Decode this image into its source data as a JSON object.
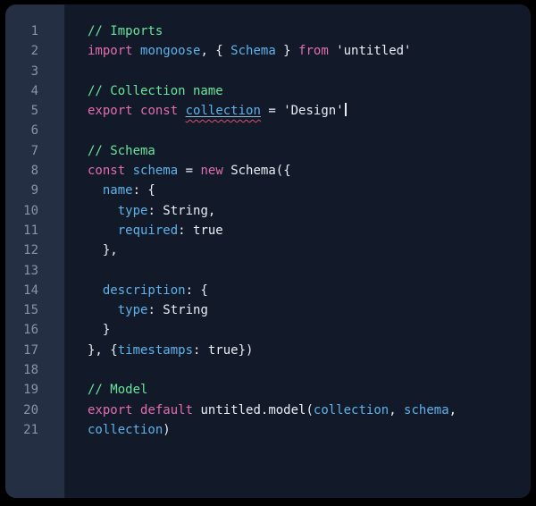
{
  "colors": {
    "frame": "#000000",
    "editor_bg": "#121a2a",
    "gutter_bg": "#242f43",
    "line_number": "#8a94a6",
    "comment": "#69e59b",
    "keyword": "#e26daf",
    "identifier": "#5eb2e9",
    "plain": "#e9edf4",
    "error_squiggle": "#dd4f68",
    "identifier_underline": "#93bcd9",
    "cursor": "#e9edf4"
  },
  "editor": {
    "language": "javascript",
    "lines": [
      {
        "num": "1",
        "tokens": [
          {
            "t": "// Imports",
            "c": "comment"
          }
        ]
      },
      {
        "num": "2",
        "tokens": [
          {
            "t": "import",
            "c": "keyword"
          },
          {
            "t": " ",
            "c": "plain"
          },
          {
            "t": "mongoose",
            "c": "ident"
          },
          {
            "t": ", { ",
            "c": "plain"
          },
          {
            "t": "Schema",
            "c": "ident"
          },
          {
            "t": " } ",
            "c": "plain"
          },
          {
            "t": "from",
            "c": "keyword"
          },
          {
            "t": " 'untitled'",
            "c": "plain"
          }
        ]
      },
      {
        "num": "3",
        "tokens": []
      },
      {
        "num": "4",
        "tokens": [
          {
            "t": "// Collection name",
            "c": "comment"
          }
        ]
      },
      {
        "num": "5",
        "tokens": [
          {
            "t": "export",
            "c": "keyword"
          },
          {
            "t": " ",
            "c": "plain"
          },
          {
            "t": "const",
            "c": "keyword"
          },
          {
            "t": " ",
            "c": "plain"
          },
          {
            "t": "collection",
            "c": "ident",
            "error": true
          },
          {
            "t": " = 'Design'",
            "c": "plain"
          },
          {
            "t": "",
            "c": "cursor"
          }
        ]
      },
      {
        "num": "6",
        "tokens": []
      },
      {
        "num": "7",
        "tokens": [
          {
            "t": "// Schema",
            "c": "comment"
          }
        ]
      },
      {
        "num": "8",
        "tokens": [
          {
            "t": "const",
            "c": "keyword"
          },
          {
            "t": " ",
            "c": "plain"
          },
          {
            "t": "schema",
            "c": "ident"
          },
          {
            "t": " = ",
            "c": "plain"
          },
          {
            "t": "new",
            "c": "keyword"
          },
          {
            "t": " Schema({",
            "c": "plain"
          }
        ]
      },
      {
        "num": "9",
        "tokens": [
          {
            "t": "  ",
            "c": "plain"
          },
          {
            "t": "name",
            "c": "ident"
          },
          {
            "t": ": {",
            "c": "plain"
          }
        ]
      },
      {
        "num": "10",
        "tokens": [
          {
            "t": "    ",
            "c": "plain"
          },
          {
            "t": "type",
            "c": "ident"
          },
          {
            "t": ": String,",
            "c": "plain"
          }
        ]
      },
      {
        "num": "11",
        "tokens": [
          {
            "t": "    ",
            "c": "plain"
          },
          {
            "t": "required",
            "c": "ident"
          },
          {
            "t": ": true",
            "c": "plain"
          }
        ]
      },
      {
        "num": "12",
        "tokens": [
          {
            "t": "  },",
            "c": "plain"
          }
        ]
      },
      {
        "num": "13",
        "tokens": []
      },
      {
        "num": "14",
        "tokens": [
          {
            "t": "  ",
            "c": "plain"
          },
          {
            "t": "description",
            "c": "ident"
          },
          {
            "t": ": {",
            "c": "plain"
          }
        ]
      },
      {
        "num": "15",
        "tokens": [
          {
            "t": "    ",
            "c": "plain"
          },
          {
            "t": "type",
            "c": "ident"
          },
          {
            "t": ": String",
            "c": "plain"
          }
        ]
      },
      {
        "num": "16",
        "tokens": [
          {
            "t": "  }",
            "c": "plain"
          }
        ]
      },
      {
        "num": "17",
        "tokens": [
          {
            "t": "}, {",
            "c": "plain"
          },
          {
            "t": "timestamps",
            "c": "ident"
          },
          {
            "t": ": true})",
            "c": "plain"
          }
        ]
      },
      {
        "num": "18",
        "tokens": []
      },
      {
        "num": "19",
        "tokens": [
          {
            "t": "// Model",
            "c": "comment"
          }
        ]
      },
      {
        "num": "20",
        "tokens": [
          {
            "t": "export",
            "c": "keyword"
          },
          {
            "t": " ",
            "c": "plain"
          },
          {
            "t": "default",
            "c": "keyword"
          },
          {
            "t": " untitled.model(",
            "c": "plain"
          },
          {
            "t": "collection",
            "c": "ident"
          },
          {
            "t": ", ",
            "c": "plain"
          },
          {
            "t": "schema",
            "c": "ident"
          },
          {
            "t": ",",
            "c": "plain"
          }
        ]
      },
      {
        "num": "21",
        "tokens": [
          {
            "t": "collection",
            "c": "ident"
          },
          {
            "t": ")",
            "c": "plain"
          }
        ]
      }
    ]
  }
}
